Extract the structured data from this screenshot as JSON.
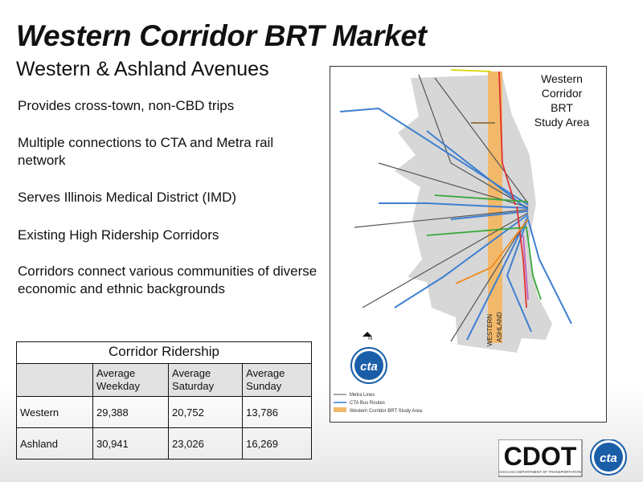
{
  "slide": {
    "title": "Western Corridor BRT Market",
    "subtitle": "Western & Ashland Avenues",
    "bullets": [
      "Provides cross-town, non-CBD trips",
      "Multiple connections to CTA and Metra rail network",
      "Serves Illinois Medical District (IMD)",
      "Existing High Ridership Corridors",
      "Corridors connect various communities of diverse economic and ethnic backgrounds"
    ]
  },
  "ridership_table": {
    "caption": "Corridor Ridership",
    "columns": [
      "Average Weekday",
      "Average Saturday",
      "Average Sunday"
    ],
    "rows": [
      {
        "name": "Western",
        "values": [
          "29,388",
          "20,752",
          "13,786"
        ]
      },
      {
        "name": "Ashland",
        "values": [
          "30,941",
          "23,026",
          "16,269"
        ]
      }
    ]
  },
  "map": {
    "title_lines": [
      "Western",
      "Corridor",
      "BRT",
      "Study Area"
    ],
    "street_labels": [
      "WESTERN",
      "ASHLAND"
    ],
    "north_label": "N",
    "legend": [
      "Metra Lines",
      "CTA Bus Routes",
      "Western Corridor BRT Study Area"
    ],
    "colors": {
      "study_area": "#f2b96b",
      "city": "#d7d7d7",
      "bus": "#3e7fd1",
      "metra": "#555555"
    }
  },
  "logos": {
    "cdot": "CDOT",
    "cdot_tagline": "CHICAGO DEPARTMENT OF TRANSPORTATION",
    "cta": "cta"
  }
}
